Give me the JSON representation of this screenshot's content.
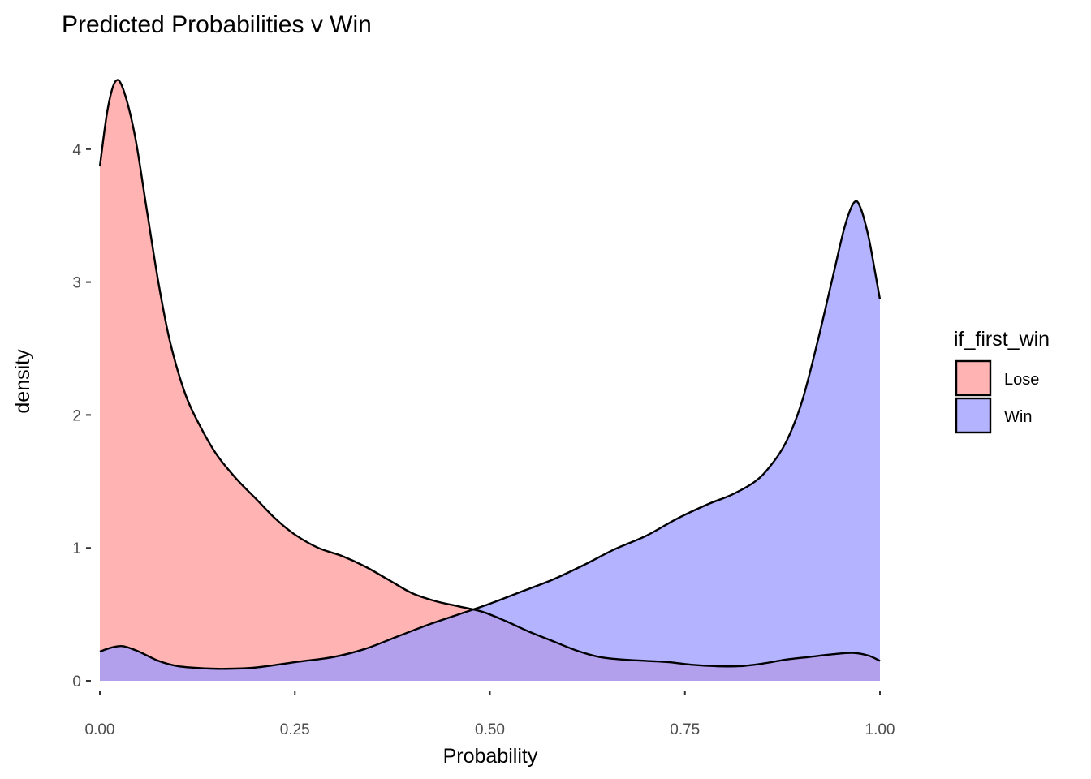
{
  "chart_data": {
    "type": "area",
    "title": "Predicted Probabilities v Win",
    "xlabel": "Probability",
    "ylabel": "density",
    "xlim": [
      0,
      1
    ],
    "ylim": [
      0,
      4.5
    ],
    "x_ticks": [
      "0.00",
      "0.25",
      "0.50",
      "0.75",
      "1.00"
    ],
    "y_ticks": [
      "0",
      "1",
      "2",
      "3",
      "4"
    ],
    "grid": false,
    "legend": {
      "title": "if_first_win",
      "position": "right"
    },
    "series": [
      {
        "name": "Lose",
        "fill_color": "#ff9999",
        "points": [
          [
            0.0,
            3.87
          ],
          [
            0.01,
            4.3
          ],
          [
            0.02,
            4.51
          ],
          [
            0.03,
            4.45
          ],
          [
            0.045,
            4.1
          ],
          [
            0.06,
            3.55
          ],
          [
            0.075,
            3.0
          ],
          [
            0.09,
            2.55
          ],
          [
            0.11,
            2.15
          ],
          [
            0.13,
            1.9
          ],
          [
            0.15,
            1.7
          ],
          [
            0.175,
            1.52
          ],
          [
            0.2,
            1.37
          ],
          [
            0.225,
            1.22
          ],
          [
            0.25,
            1.1
          ],
          [
            0.28,
            1.0
          ],
          [
            0.31,
            0.94
          ],
          [
            0.34,
            0.86
          ],
          [
            0.37,
            0.76
          ],
          [
            0.4,
            0.66
          ],
          [
            0.43,
            0.6
          ],
          [
            0.46,
            0.56
          ],
          [
            0.49,
            0.52
          ],
          [
            0.52,
            0.45
          ],
          [
            0.55,
            0.37
          ],
          [
            0.58,
            0.3
          ],
          [
            0.61,
            0.23
          ],
          [
            0.64,
            0.18
          ],
          [
            0.67,
            0.16
          ],
          [
            0.7,
            0.15
          ],
          [
            0.73,
            0.14
          ],
          [
            0.76,
            0.12
          ],
          [
            0.79,
            0.11
          ],
          [
            0.82,
            0.11
          ],
          [
            0.85,
            0.13
          ],
          [
            0.88,
            0.16
          ],
          [
            0.91,
            0.18
          ],
          [
            0.94,
            0.2
          ],
          [
            0.965,
            0.21
          ],
          [
            0.985,
            0.19
          ],
          [
            1.0,
            0.15
          ]
        ]
      },
      {
        "name": "Win",
        "fill_color": "#9999ff",
        "points": [
          [
            0.0,
            0.22
          ],
          [
            0.015,
            0.25
          ],
          [
            0.03,
            0.26
          ],
          [
            0.05,
            0.22
          ],
          [
            0.075,
            0.15
          ],
          [
            0.1,
            0.11
          ],
          [
            0.13,
            0.095
          ],
          [
            0.16,
            0.09
          ],
          [
            0.2,
            0.1
          ],
          [
            0.25,
            0.14
          ],
          [
            0.3,
            0.18
          ],
          [
            0.34,
            0.24
          ],
          [
            0.38,
            0.33
          ],
          [
            0.42,
            0.42
          ],
          [
            0.46,
            0.5
          ],
          [
            0.5,
            0.58
          ],
          [
            0.54,
            0.67
          ],
          [
            0.58,
            0.76
          ],
          [
            0.62,
            0.87
          ],
          [
            0.66,
            0.99
          ],
          [
            0.7,
            1.09
          ],
          [
            0.74,
            1.22
          ],
          [
            0.78,
            1.33
          ],
          [
            0.81,
            1.4
          ],
          [
            0.84,
            1.5
          ],
          [
            0.86,
            1.62
          ],
          [
            0.88,
            1.8
          ],
          [
            0.9,
            2.1
          ],
          [
            0.92,
            2.55
          ],
          [
            0.94,
            3.05
          ],
          [
            0.955,
            3.42
          ],
          [
            0.967,
            3.6
          ],
          [
            0.975,
            3.56
          ],
          [
            0.985,
            3.35
          ],
          [
            0.993,
            3.1
          ],
          [
            1.0,
            2.87
          ]
        ]
      }
    ]
  }
}
